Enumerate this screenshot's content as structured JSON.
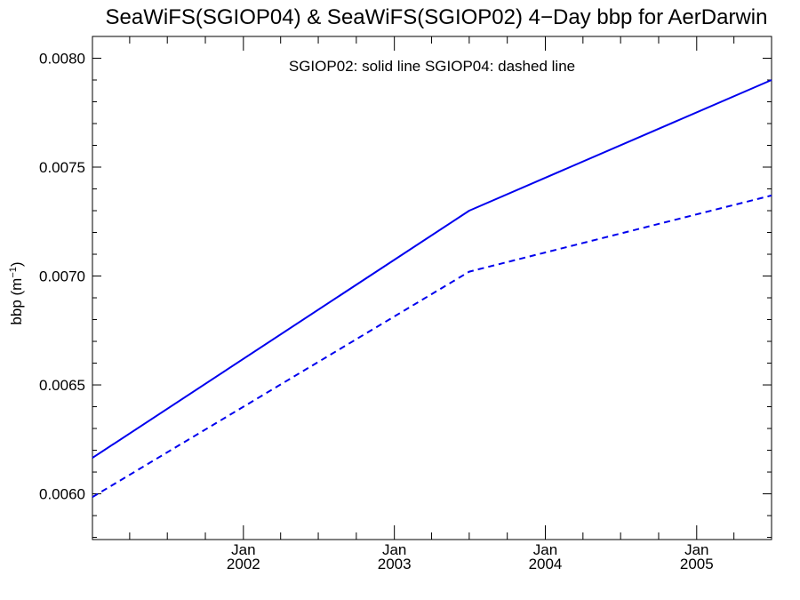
{
  "chart_data": {
    "type": "line",
    "title": "SeaWiFS(SGIOP04) & SeaWiFS(SGIOP02) 4−Day bbp for AerDarwin",
    "ylabel": "bbp (m",
    "ylabel_sup": "−1",
    "ylabel_close": ")",
    "annotation": "SGIOP02: solid line   SGIOP04: dashed line",
    "ylim": [
      0.00579,
      0.0081
    ],
    "xlim": [
      "2001-01-01",
      "2005-07-01"
    ],
    "y_ticks": [
      {
        "value": 0.006,
        "label": "0.0060"
      },
      {
        "value": 0.0065,
        "label": "0.0065"
      },
      {
        "value": 0.007,
        "label": "0.0070"
      },
      {
        "value": 0.0075,
        "label": "0.0075"
      },
      {
        "value": 0.008,
        "label": "0.0080"
      }
    ],
    "y_minor_step": 0.0001,
    "x_ticks": [
      {
        "date": "2002-01-01",
        "label": "Jan",
        "sublabel": "2002"
      },
      {
        "date": "2003-01-01",
        "label": "Jan",
        "sublabel": "2003"
      },
      {
        "date": "2004-01-01",
        "label": "Jan",
        "sublabel": "2004"
      },
      {
        "date": "2005-01-01",
        "label": "Jan",
        "sublabel": "2005"
      }
    ],
    "x_minor_ticks": [
      "2001-04-01",
      "2001-07-01",
      "2001-10-01",
      "2002-04-01",
      "2002-07-01",
      "2002-10-01",
      "2003-04-01",
      "2003-07-01",
      "2003-10-01",
      "2004-04-01",
      "2004-07-01",
      "2004-10-01",
      "2005-04-01"
    ],
    "series": [
      {
        "style": "solid",
        "color": "#0000ee",
        "points": [
          {
            "x": "2001-01-01",
            "y": 0.006165
          },
          {
            "x": "2003-07-01",
            "y": 0.0073
          },
          {
            "x": "2005-07-01",
            "y": 0.0079
          }
        ]
      },
      {
        "style": "dashed",
        "color": "#0000ee",
        "points": [
          {
            "x": "2001-01-01",
            "y": 0.005985
          },
          {
            "x": "2003-07-01",
            "y": 0.00702
          },
          {
            "x": "2005-07-01",
            "y": 0.00737
          }
        ]
      }
    ],
    "grid": false
  }
}
